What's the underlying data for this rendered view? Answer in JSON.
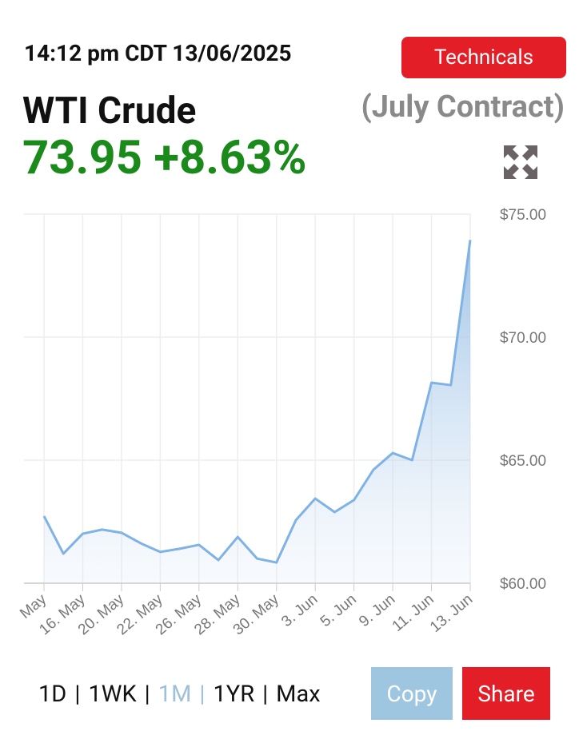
{
  "header": {
    "timestamp": "14:12 pm CDT 13/06/2025",
    "button": "Technicals",
    "name": "WTI Crude",
    "contract": "(July Contract)",
    "price": "73.95",
    "change": "+8.63%"
  },
  "chart_data": {
    "type": "area",
    "color": "#7fb2e5",
    "categories": [
      "May",
      null,
      "16. May",
      null,
      "20. May",
      null,
      "22. May",
      null,
      "26. May",
      null,
      "28. May",
      null,
      "30. May",
      null,
      "3. Jun",
      null,
      "5. Jun",
      null,
      "9. Jun",
      null,
      "11. Jun",
      null,
      "13. Jun"
    ],
    "values": [
      62.73,
      61.2,
      62.01,
      62.18,
      62.05,
      61.62,
      61.27,
      61.4,
      61.56,
      60.94,
      61.88,
      61.0,
      60.84,
      62.56,
      63.44,
      62.89,
      63.38,
      64.61,
      65.29,
      65.0,
      68.15,
      68.05,
      73.95
    ],
    "ylim": [
      60,
      75
    ],
    "yticks": [
      {
        "value": 60,
        "label": "$60.00"
      },
      {
        "value": 65,
        "label": "$65.00"
      },
      {
        "value": 70,
        "label": "$70.00"
      },
      {
        "value": 75,
        "label": "$75.00"
      }
    ],
    "grid": true
  },
  "controls": {
    "ranges": [
      "1D",
      "1WK",
      "1M",
      "1YR",
      "Max"
    ],
    "separator": "|",
    "copy": "Copy",
    "share": "Share"
  }
}
